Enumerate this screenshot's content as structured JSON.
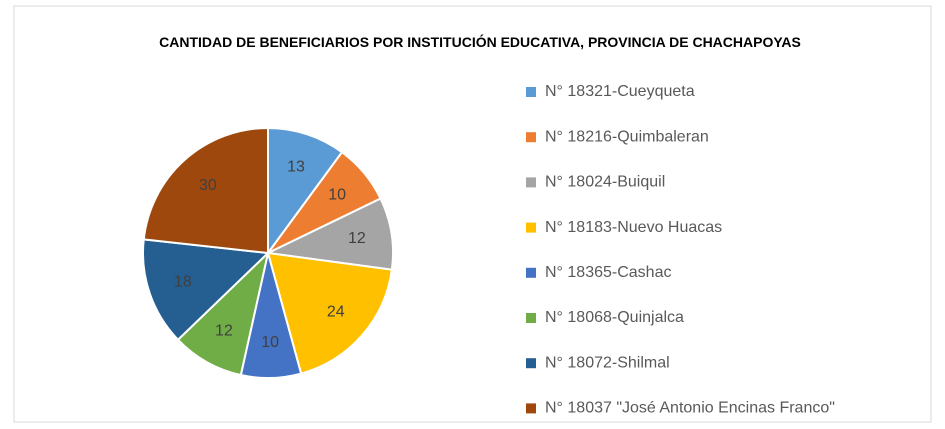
{
  "chart_data": {
    "type": "pie",
    "title": "CANTIDAD DE BENEFICIARIOS POR INSTITUCIÓN EDUCATIVA, PROVINCIA DE CHACHAPOYAS",
    "categories": [
      "N° 18321-Cueyqueta",
      "N° 18216-Quimbaleran",
      "N° 18024-Buiquil",
      "N° 18183-Nuevo  Huacas",
      "N° 18365-Cashac",
      "N° 18068-Quinjalca",
      "N° 18072-Shilmal",
      "N° 18037 \"José Antonio Encinas Franco\""
    ],
    "values": [
      13,
      10,
      12,
      24,
      10,
      12,
      18,
      30
    ],
    "colors": [
      "#5b9bd5",
      "#ed7d31",
      "#a5a5a5",
      "#ffc000",
      "#4472c4",
      "#70ad47",
      "#255e91",
      "#9e480e"
    ],
    "legend": "right"
  }
}
